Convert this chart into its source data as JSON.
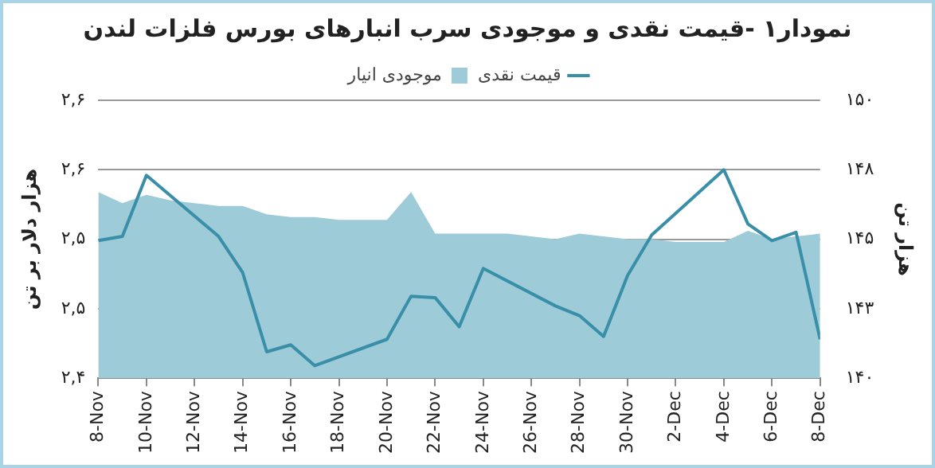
{
  "chart_data": {
    "type": "line",
    "title": "نمودار۱ -قیمت نقدی و موجودی سرب انبارهای بورس فلزات لندن",
    "ylabel": "هزار دلار بر تن",
    "y2label": "هزار تن",
    "series": [
      {
        "name": "قیمت نقدی",
        "color": "#3a8fa8",
        "x": [
          "--11-08",
          "--11-09",
          "--11-10",
          "--11-13",
          "--11-14",
          "--11-15",
          "--11-16",
          "--11-17",
          "--11-20",
          "--11-21",
          "--11-22",
          "--11-23",
          "--11-24",
          "--11-27",
          "--11-28",
          "--11-29",
          "--11-30",
          "--12-01",
          "--12-04",
          "--12-05",
          "--12-06",
          "--12-07",
          "--12-08"
        ],
        "values": [
          2.499,
          2.502,
          2.546,
          2.502,
          2.476,
          2.419,
          2.424,
          2.409,
          2.428,
          2.459,
          2.458,
          2.437,
          2.479,
          2.452,
          2.445,
          2.43,
          2.474,
          2.503,
          2.55,
          2.511,
          2.499,
          2.505,
          2.428
        ]
      },
      {
        "name": "موجودی انیار",
        "type": "area",
        "axis": "y2",
        "color": "#9ecbd8",
        "x": [
          "--11-08",
          "--11-09",
          "--11-10",
          "--11-11",
          "--11-12",
          "--11-13",
          "--11-14",
          "--11-15",
          "--11-16",
          "--11-17",
          "--11-18",
          "--11-19",
          "--11-20",
          "--11-21",
          "--11-22",
          "--11-23",
          "--11-24",
          "--11-25",
          "--11-26",
          "--11-27",
          "--11-28",
          "--11-29",
          "--11-30",
          "--12-01",
          "--12-02",
          "--12-03",
          "--12-04",
          "--12-05",
          "--12-06",
          "--12-07",
          "--12-08"
        ],
        "values": [
          146.7,
          146.3,
          146.6,
          146.4,
          146.3,
          146.2,
          146.2,
          145.9,
          145.8,
          145.8,
          145.7,
          145.7,
          145.7,
          146.7,
          145.2,
          145.2,
          145.2,
          145.2,
          145.1,
          145.0,
          145.2,
          145.1,
          145.0,
          145.0,
          144.9,
          144.9,
          144.9,
          145.3,
          145.0,
          145.1,
          145.2
        ]
      }
    ],
    "xlim": [
      "--11-08",
      "--12-08"
    ],
    "xticks": [
      {
        "value": "--11-08",
        "label": "8-Nov"
      },
      {
        "value": "--11-10",
        "label": "10-Nov"
      },
      {
        "value": "--11-12",
        "label": "12-Nov"
      },
      {
        "value": "--11-14",
        "label": "14-Nov"
      },
      {
        "value": "--11-16",
        "label": "16-Nov"
      },
      {
        "value": "--11-18",
        "label": "18-Nov"
      },
      {
        "value": "--11-20",
        "label": "20-Nov"
      },
      {
        "value": "--11-22",
        "label": "22-Nov"
      },
      {
        "value": "--11-24",
        "label": "24-Nov"
      },
      {
        "value": "--11-26",
        "label": "26-Nov"
      },
      {
        "value": "--11-28",
        "label": "28-Nov"
      },
      {
        "value": "--11-30",
        "label": "30-Nov"
      },
      {
        "value": "--12-02",
        "label": "2-Dec"
      },
      {
        "value": "--12-04",
        "label": "4-Dec"
      },
      {
        "value": "--12-06",
        "label": "6-Dec"
      },
      {
        "value": "--12-08",
        "label": "8-Dec"
      }
    ],
    "ylim": [
      2.4,
      2.6
    ],
    "yticks": [
      {
        "value": 2.4,
        "label": "۲,۴"
      },
      {
        "value": 2.45,
        "label": "۲,۵"
      },
      {
        "value": 2.5,
        "label": "۲,۵"
      },
      {
        "value": 2.55,
        "label": "۲,۶"
      },
      {
        "value": 2.6,
        "label": "۲,۶"
      }
    ],
    "y2lim": [
      140,
      150
    ],
    "y2ticks": [
      {
        "value": 140,
        "label": "۱۴۰"
      },
      {
        "value": 142.5,
        "label": "۱۴۳"
      },
      {
        "value": 145,
        "label": "۱۴۵"
      },
      {
        "value": 147.5,
        "label": "۱۴۸"
      },
      {
        "value": 150,
        "label": "۱۵۰"
      }
    ],
    "grid": "y",
    "legend": "top"
  }
}
